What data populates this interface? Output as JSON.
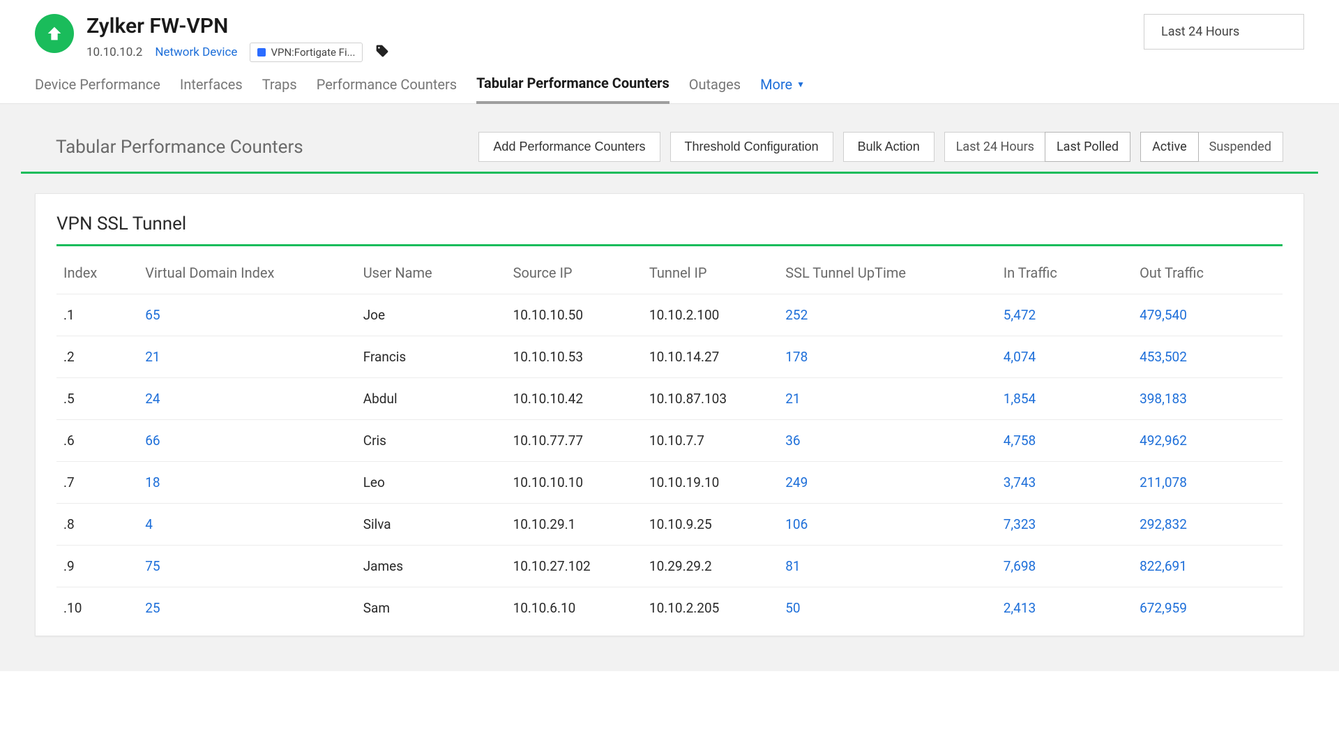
{
  "header": {
    "title": "Zylker FW-VPN",
    "ip": "10.10.10.2",
    "device_type_link": "Network Device",
    "chip_label": "VPN:Fortigate Fi...",
    "time_range": "Last 24 Hours",
    "status_color": "#1abc5b"
  },
  "tabs": {
    "items": [
      "Device Performance",
      "Interfaces",
      "Traps",
      "Performance Counters",
      "Tabular Performance Counters",
      "Outages"
    ],
    "active_index": 4,
    "more_label": "More"
  },
  "toolbar": {
    "title": "Tabular Performance Counters",
    "add_btn": "Add Performance Counters",
    "threshold_btn": "Threshold Configuration",
    "bulk_btn": "Bulk Action",
    "time_seg": {
      "opt1": "Last 24 Hours",
      "opt2": "Last Polled",
      "selected": 1
    },
    "status_seg": {
      "opt1": "Active",
      "opt2": "Suspended",
      "selected": 0
    }
  },
  "table": {
    "title": "VPN SSL Tunnel",
    "columns": [
      "Index",
      "Virtual Domain Index",
      "User Name",
      "Source IP",
      "Tunnel IP",
      "SSL Tunnel UpTime",
      "In Traffic",
      "Out Traffic"
    ],
    "rows": [
      {
        "index": ".1",
        "vdi": "65",
        "user": "Joe",
        "sip": "10.10.10.50",
        "tip": "10.10.2.100",
        "uptime": "252",
        "in": "5,472",
        "out": "479,540"
      },
      {
        "index": ".2",
        "vdi": "21",
        "user": "Francis",
        "sip": "10.10.10.53",
        "tip": "10.10.14.27",
        "uptime": "178",
        "in": "4,074",
        "out": "453,502"
      },
      {
        "index": ".5",
        "vdi": "24",
        "user": "Abdul",
        "sip": "10.10.10.42",
        "tip": "10.10.87.103",
        "uptime": "21",
        "in": "1,854",
        "out": "398,183"
      },
      {
        "index": ".6",
        "vdi": "66",
        "user": "Cris",
        "sip": "10.10.77.77",
        "tip": "10.10.7.7",
        "uptime": "36",
        "in": "4,758",
        "out": "492,962"
      },
      {
        "index": ".7",
        "vdi": "18",
        "user": "Leo",
        "sip": "10.10.10.10",
        "tip": "10.10.19.10",
        "uptime": "249",
        "in": "3,743",
        "out": "211,078"
      },
      {
        "index": ".8",
        "vdi": "4",
        "user": "Silva",
        "sip": "10.10.29.1",
        "tip": "10.10.9.25",
        "uptime": "106",
        "in": "7,323",
        "out": "292,832"
      },
      {
        "index": ".9",
        "vdi": "75",
        "user": "James",
        "sip": "10.10.27.102",
        "tip": "10.29.29.2",
        "uptime": "81",
        "in": "7,698",
        "out": "822,691"
      },
      {
        "index": ".10",
        "vdi": "25",
        "user": "Sam",
        "sip": "10.10.6.10",
        "tip": "10.10.2.205",
        "uptime": "50",
        "in": "2,413",
        "out": "672,959"
      }
    ]
  },
  "colors": {
    "link": "#1e6fd9",
    "accent_green": "#1abc5b",
    "text_muted": "#6a6a6a",
    "bg_content": "#f2f2f2",
    "border": "#e5e5e5"
  }
}
